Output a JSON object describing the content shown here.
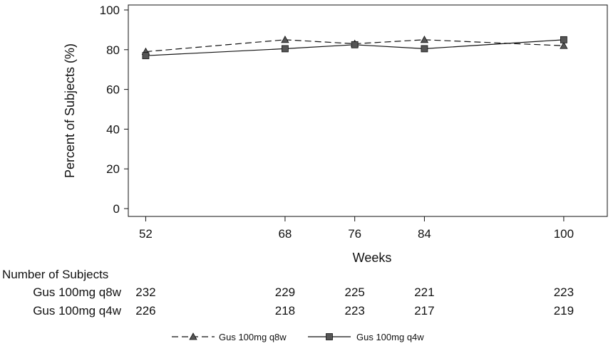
{
  "chart_data": {
    "type": "line",
    "title": "",
    "xlabel": "Weeks",
    "ylabel": "Percent of Subjects (%)",
    "x": [
      52,
      68,
      76,
      84,
      100
    ],
    "xticks": [
      "52",
      "68",
      "76",
      "84",
      "100"
    ],
    "xlim": [
      50,
      105
    ],
    "ylim": [
      0,
      100
    ],
    "yticks": [
      0,
      20,
      40,
      60,
      80,
      100
    ],
    "grid": false,
    "legend_position": "bottom-center",
    "series": [
      {
        "name": "Gus 100mg q8w",
        "marker": "triangle",
        "line_style": "dashed",
        "values": [
          79,
          85,
          83,
          85,
          82
        ]
      },
      {
        "name": "Gus 100mg q4w",
        "marker": "square",
        "line_style": "solid",
        "values": [
          77,
          80.5,
          82.5,
          80.5,
          85
        ]
      }
    ],
    "subjects_table": {
      "header": "Number of Subjects",
      "rows": [
        {
          "label": "Gus 100mg q8w",
          "counts": [
            "232",
            "229",
            "225",
            "221",
            "223"
          ]
        },
        {
          "label": "Gus 100mg q4w",
          "counts": [
            "226",
            "218",
            "223",
            "217",
            "219"
          ]
        }
      ]
    }
  }
}
